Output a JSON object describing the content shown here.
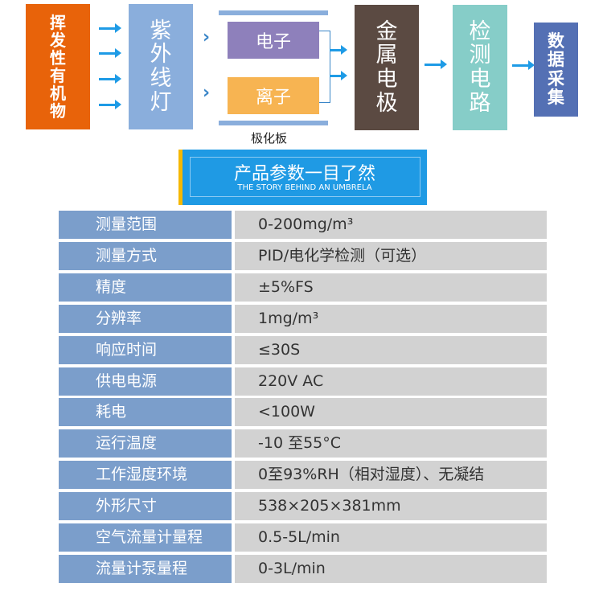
{
  "flow": {
    "voc": "挥发性有机物",
    "uv": "紫外线灯",
    "electron": "电子",
    "ion": "离子",
    "plate_label": "极化板",
    "electrode": "金属电极",
    "circuit": "检测电路",
    "acquisition": "数据采集"
  },
  "banner": {
    "title": "产品参数一目了然",
    "subtitle": "THE STORY BEHIND AN UMBRELA"
  },
  "colors": {
    "orange": "#e8630a",
    "uv": "#8aaedc",
    "purple": "#8e80bb",
    "yellow": "#f7b452",
    "brown": "#5b4a42",
    "teal": "#86cdc8",
    "navy": "#5470b4",
    "banner": "#1f9ae4",
    "label": "#7b9ecb",
    "value": "#d2d2d2"
  },
  "specs": [
    {
      "label": "测量范围",
      "value": "0-200mg/m³"
    },
    {
      "label": "测量方式",
      "value": "PID/电化学检测（可选）"
    },
    {
      "label": "精度",
      "value": "±5%FS"
    },
    {
      "label": "分辨率",
      "value": "1mg/m³"
    },
    {
      "label": "响应时间",
      "value": "≤30S"
    },
    {
      "label": "供电电源",
      "value": "220V AC"
    },
    {
      "label": "耗电",
      "value": "<100W"
    },
    {
      "label": "运行温度",
      "value": "-10 至55°C"
    },
    {
      "label": "工作湿度环境",
      "value": "0至93%RH（相对湿度）、无凝结"
    },
    {
      "label": "外形尺寸",
      "value": "538×205×381mm"
    },
    {
      "label": "空气流量计量程",
      "value": "0.5-5L/min"
    },
    {
      "label": "流量计泵量程",
      "value": "0-3L/min"
    }
  ]
}
